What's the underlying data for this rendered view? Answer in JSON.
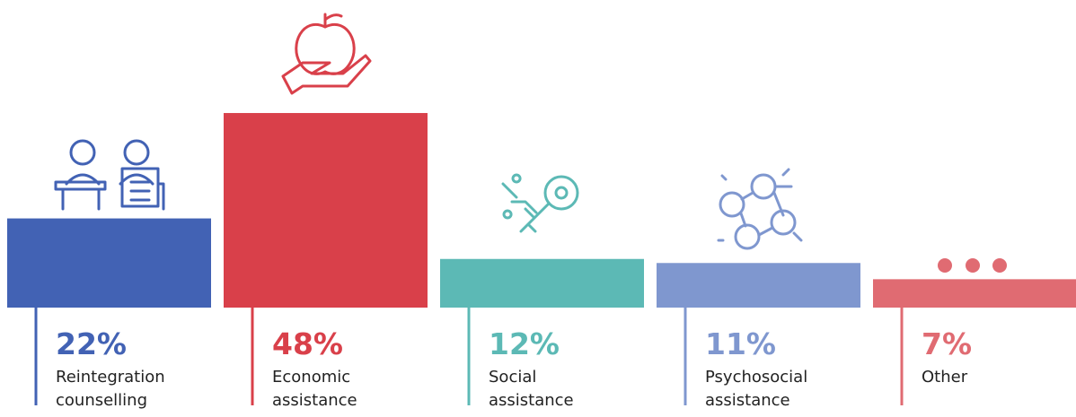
{
  "chart_data": {
    "type": "bar",
    "categories": [
      "Reintegration counselling",
      "Economic assistance",
      "Social assistance",
      "Psychosocial assistance",
      "Other"
    ],
    "values": [
      22,
      48,
      12,
      11,
      7
    ],
    "value_labels": [
      "22%",
      "48%",
      "12%",
      "11%",
      "7%"
    ],
    "colors": [
      "#4262b4",
      "#d9404a",
      "#5cb9b5",
      "#7f97cf",
      "#e06b72"
    ]
  }
}
